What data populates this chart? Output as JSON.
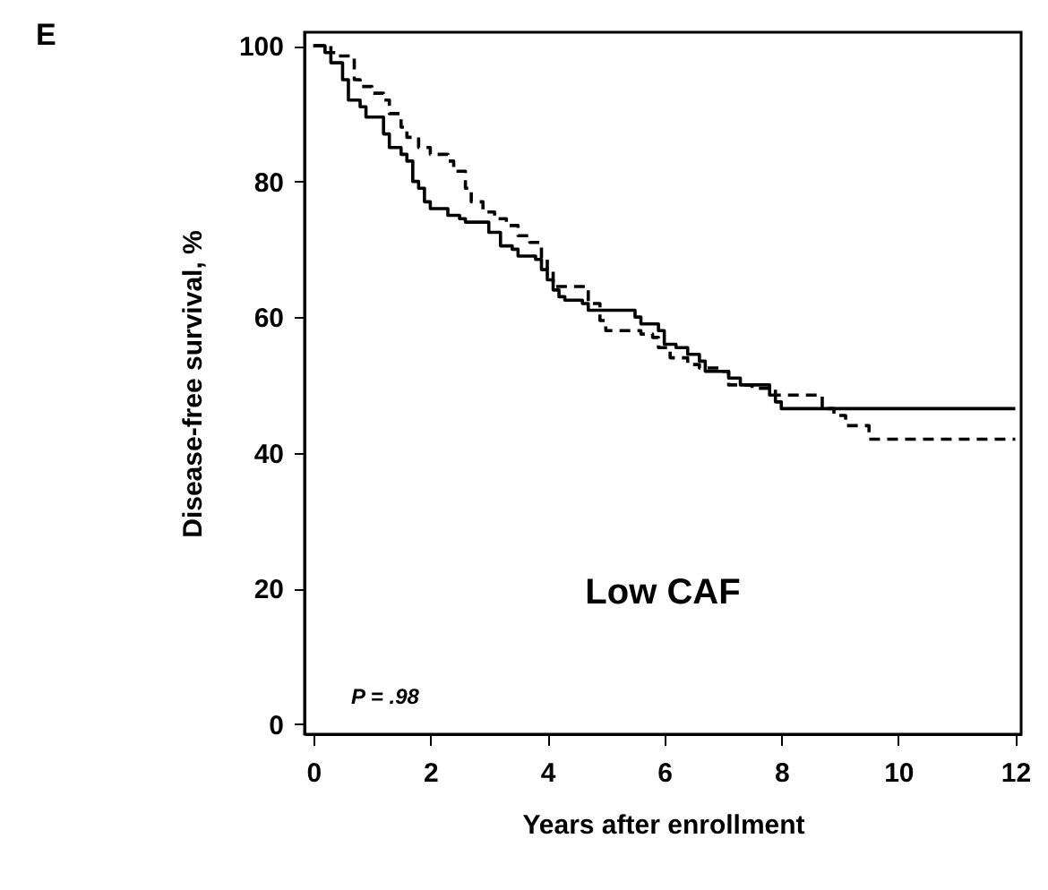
{
  "chart_data": {
    "type": "step",
    "title": "E",
    "xlabel": "Years after enrollment",
    "ylabel": "Disease-free survival, %",
    "annotations": [
      "Low CAF",
      "P = .98"
    ],
    "xlim": [
      -0.15,
      12.1
    ],
    "xticks": [
      0,
      2,
      4,
      6,
      8,
      10,
      12
    ],
    "ylim": [
      -1.5,
      102
    ],
    "yticks": [
      0,
      20,
      40,
      60,
      80,
      100
    ],
    "grid": false,
    "marker": "none",
    "series": [
      {
        "color": "#000000",
        "line_style": "solid",
        "x": [
          0,
          0.2,
          0.3,
          0.5,
          0.6,
          0.8,
          0.9,
          1.2,
          1.3,
          1.5,
          1.6,
          1.7,
          1.8,
          1.9,
          2.0,
          2.3,
          2.5,
          2.6,
          3.0,
          3.2,
          3.4,
          3.5,
          3.8,
          3.9,
          4.0,
          4.1,
          4.2,
          4.3,
          4.6,
          4.7,
          5.5,
          5.6,
          5.9,
          6.0,
          6.2,
          6.4,
          6.6,
          6.7,
          7.1,
          7.3,
          7.8,
          7.9,
          8.0,
          12
        ],
        "values": [
          100,
          99,
          97.5,
          95,
          92,
          91,
          89.5,
          87,
          85,
          84,
          83,
          80,
          79,
          77,
          76,
          75,
          74.5,
          74,
          72.5,
          70.5,
          70,
          69,
          68.5,
          67,
          65.5,
          64,
          63,
          62.5,
          62,
          61,
          60,
          59,
          58,
          56,
          55.5,
          54.5,
          53.5,
          52,
          51,
          50,
          48.5,
          47.5,
          46.5,
          46.5
        ]
      },
      {
        "color": "#000000",
        "line_style": "dashed",
        "x": [
          0,
          0.3,
          0.4,
          0.7,
          0.8,
          1.0,
          1.2,
          1.3,
          1.5,
          1.6,
          1.8,
          2.0,
          2.3,
          2.4,
          2.6,
          2.7,
          2.9,
          3.1,
          3.3,
          3.5,
          3.7,
          3.9,
          4.0,
          4.1,
          4.7,
          4.9,
          5.0,
          5.6,
          5.8,
          5.9,
          6.1,
          6.4,
          6.6,
          7.0,
          7.1,
          7.5,
          7.9,
          8.7,
          8.9,
          9.1,
          9.5,
          12
        ],
        "values": [
          100,
          99,
          98.5,
          95,
          94,
          93,
          92,
          90,
          88,
          86.5,
          85,
          84,
          83,
          81.5,
          79,
          77,
          75.5,
          74.5,
          73.5,
          72,
          71,
          68.5,
          67,
          64.5,
          62,
          59.5,
          58,
          57.5,
          57,
          55.5,
          54,
          53,
          52.5,
          52,
          50,
          49.5,
          48.5,
          46.5,
          45.5,
          44,
          42,
          42
        ]
      }
    ]
  }
}
